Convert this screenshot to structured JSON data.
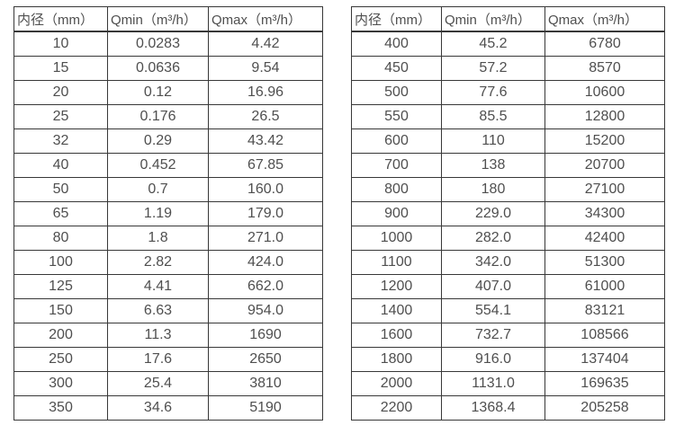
{
  "colors": {
    "background": "#ffffff",
    "table_border": "#383838",
    "text": "#4f4f4f"
  },
  "tables": {
    "left": {
      "headers": [
        "内径（mm）",
        "Qmin（m³/h）",
        "Qmax（m³/h）"
      ],
      "rows": [
        [
          "10",
          "0.0283",
          "4.42"
        ],
        [
          "15",
          "0.0636",
          "9.54"
        ],
        [
          "20",
          "0.12",
          "16.96"
        ],
        [
          "25",
          "0.176",
          "26.5"
        ],
        [
          "32",
          "0.29",
          "43.42"
        ],
        [
          "40",
          "0.452",
          "67.85"
        ],
        [
          "50",
          "0.7",
          "160.0"
        ],
        [
          "65",
          "1.19",
          "179.0"
        ],
        [
          "80",
          "1.8",
          "271.0"
        ],
        [
          "100",
          "2.82",
          "424.0"
        ],
        [
          "125",
          "4.41",
          "662.0"
        ],
        [
          "150",
          "6.63",
          "954.0"
        ],
        [
          "200",
          "11.3",
          "1690"
        ],
        [
          "250",
          "17.6",
          "2650"
        ],
        [
          "300",
          "25.4",
          "3810"
        ],
        [
          "350",
          "34.6",
          "5190"
        ]
      ]
    },
    "right": {
      "headers": [
        "内径（mm）",
        "Qmin（m³/h）",
        "Qmax（m³/h）"
      ],
      "rows": [
        [
          "400",
          "45.2",
          "6780"
        ],
        [
          "450",
          "57.2",
          "8570"
        ],
        [
          "500",
          "77.6",
          "10600"
        ],
        [
          "550",
          "85.5",
          "12800"
        ],
        [
          "600",
          "110",
          "15200"
        ],
        [
          "700",
          "138",
          "20700"
        ],
        [
          "800",
          "180",
          "27100"
        ],
        [
          "900",
          "229.0",
          "34300"
        ],
        [
          "1000",
          "282.0",
          "42400"
        ],
        [
          "1100",
          "342.0",
          "51300"
        ],
        [
          "1200",
          "407.0",
          "61000"
        ],
        [
          "1400",
          "554.1",
          "83121"
        ],
        [
          "1600",
          "732.7",
          "108566"
        ],
        [
          "1800",
          "916.0",
          "137404"
        ],
        [
          "2000",
          "1131.0",
          "169635"
        ],
        [
          "2200",
          "1368.4",
          "205258"
        ]
      ]
    }
  }
}
